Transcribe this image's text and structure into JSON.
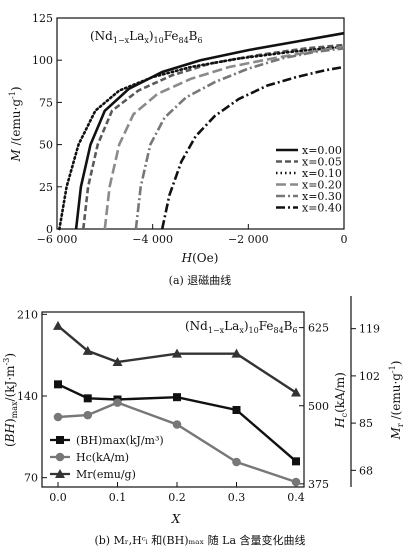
{
  "captions": {
    "a": "(a) 退磁曲线",
    "b": "(b) Mᵣ,Hᶜᵢ 和(BH)ₘₐₓ 随 La 含量变化曲线"
  },
  "chart_data": [
    {
      "type": "line",
      "title": "",
      "annotation": "(Nd1-xLax)10Fe84B6",
      "xlabel": "H(Oe)",
      "ylabel": "M/(emu·g⁻¹)",
      "xlim": [
        -6000,
        0
      ],
      "ylim": [
        0,
        125
      ],
      "xticks": [
        "−6 000",
        "−4 000",
        "−2 000",
        "0"
      ],
      "yticks": [
        "0",
        "25",
        "50",
        "75",
        "100",
        "125"
      ],
      "legend_position": "right",
      "series": [
        {
          "name": "x=0.00",
          "style": "solid",
          "color": "#111111",
          "points": [
            [
              -5600,
              0
            ],
            [
              -5500,
              25
            ],
            [
              -5300,
              50
            ],
            [
              -5000,
              70
            ],
            [
              -4500,
              83
            ],
            [
              -3800,
              93
            ],
            [
              -3000,
              100
            ],
            [
              -2000,
              106
            ],
            [
              -1000,
              111
            ],
            [
              0,
              116
            ]
          ]
        },
        {
          "name": "x=0.05",
          "style": "dash",
          "color": "#5a5a5a",
          "points": [
            [
              -5450,
              0
            ],
            [
              -5350,
              25
            ],
            [
              -5150,
              50
            ],
            [
              -4850,
              70
            ],
            [
              -4300,
              82
            ],
            [
              -3600,
              91
            ],
            [
              -2800,
              98
            ],
            [
              -1800,
              103
            ],
            [
              -800,
              107
            ],
            [
              0,
              109
            ]
          ]
        },
        {
          "name": "x=0.10",
          "style": "dot",
          "color": "#111111",
          "points": [
            [
              -5950,
              0
            ],
            [
              -5800,
              25
            ],
            [
              -5550,
              50
            ],
            [
              -5200,
              70
            ],
            [
              -4700,
              82
            ],
            [
              -4000,
              90
            ],
            [
              -3200,
              96
            ],
            [
              -2200,
              101
            ],
            [
              -1100,
              105
            ],
            [
              0,
              108
            ]
          ]
        },
        {
          "name": "x=0.20",
          "style": "longdash",
          "color": "#8a8a8a",
          "points": [
            [
              -5000,
              0
            ],
            [
              -4900,
              25
            ],
            [
              -4700,
              50
            ],
            [
              -4400,
              68
            ],
            [
              -3900,
              80
            ],
            [
              -3200,
              89
            ],
            [
              -2400,
              96
            ],
            [
              -1500,
              101
            ],
            [
              -700,
              105
            ],
            [
              0,
              108
            ]
          ]
        },
        {
          "name": "x=0.30",
          "style": "dashdot",
          "color": "#777777",
          "points": [
            [
              -4350,
              0
            ],
            [
              -4250,
              25
            ],
            [
              -4050,
              50
            ],
            [
              -3750,
              66
            ],
            [
              -3300,
              78
            ],
            [
              -2700,
              87
            ],
            [
              -2000,
              95
            ],
            [
              -1300,
              101
            ],
            [
              -600,
              105
            ],
            [
              0,
              107
            ]
          ]
        },
        {
          "name": "x=0.40",
          "style": "dashdot",
          "color": "#111111",
          "points": [
            [
              -3800,
              0
            ],
            [
              -3650,
              20
            ],
            [
              -3400,
              40
            ],
            [
              -3100,
              55
            ],
            [
              -2700,
              67
            ],
            [
              -2200,
              77
            ],
            [
              -1600,
              85
            ],
            [
              -1000,
              90
            ],
            [
              -400,
              94
            ],
            [
              0,
              96
            ]
          ]
        }
      ]
    },
    {
      "type": "line",
      "title": "",
      "annotation": "(Nd1-xLax)10Fe84B6",
      "xlabel": "X",
      "xlim": [
        0,
        0.42
      ],
      "xticks": [
        "0.0",
        "0.1",
        "0.2",
        "0.3",
        "0.4"
      ],
      "axes": [
        {
          "label": "(BH)max/(kJ·m⁻³)",
          "side": "left",
          "ylim": [
            62,
            212
          ],
          "ticks": [
            "70",
            "140",
            "210"
          ]
        },
        {
          "label": "Hc(kA/m)",
          "side": "right",
          "ylim": [
            370,
            650
          ],
          "ticks": [
            "375",
            "500",
            "625"
          ]
        },
        {
          "label": "Mr/(emu·g⁻¹)",
          "side": "right-outer",
          "ylim": [
            62,
            125
          ],
          "ticks": [
            "68",
            "85",
            "102",
            "119"
          ]
        }
      ],
      "legend_position": "left-bottom",
      "series": [
        {
          "name": "(BH)max(kJ/m³)",
          "marker": "square",
          "color": "#111111",
          "axis": 0,
          "x": [
            0,
            0.05,
            0.1,
            0.2,
            0.3,
            0.4
          ],
          "y": [
            150,
            138,
            137,
            139,
            128,
            84
          ]
        },
        {
          "name": "Hc(kA/m)",
          "marker": "circle",
          "color": "#777777",
          "axis": 1,
          "x": [
            0,
            0.05,
            0.1,
            0.2,
            0.3,
            0.4
          ],
          "y": [
            482,
            485,
            505,
            470,
            410,
            378
          ]
        },
        {
          "name": "Mr(emu/g)",
          "marker": "triangle",
          "color": "#333333",
          "axis": 2,
          "x": [
            0,
            0.05,
            0.1,
            0.2,
            0.3,
            0.4
          ],
          "y": [
            120,
            111,
            107,
            110,
            110,
            96
          ]
        }
      ]
    }
  ]
}
